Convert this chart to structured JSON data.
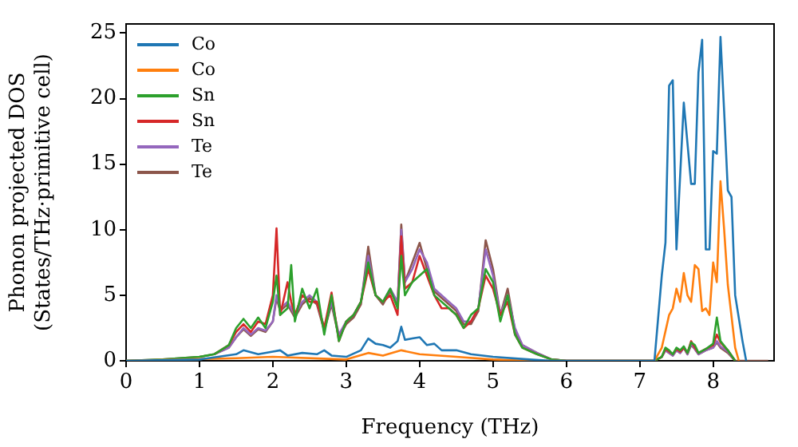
{
  "chart_data": {
    "type": "line",
    "xlabel": "Frequency (THz)",
    "ylabel": "Phonon projected DOS\n(States/THz·primitive cell)",
    "xlim": [
      0,
      8.83
    ],
    "ylim": [
      0,
      25.7
    ],
    "xticks": [
      0,
      1,
      2,
      3,
      4,
      5,
      6,
      7,
      8
    ],
    "yticks": [
      0,
      5,
      10,
      15,
      20,
      25
    ],
    "grid": false,
    "legend": "top left",
    "marker": "none",
    "line_style": "solid",
    "series": [
      {
        "name": "Co",
        "color": "#1f77b4",
        "x": [
          0,
          1.0,
          1.5,
          1.6,
          1.8,
          2.0,
          2.1,
          2.2,
          2.4,
          2.6,
          2.7,
          2.8,
          3.0,
          3.2,
          3.3,
          3.4,
          3.5,
          3.6,
          3.7,
          3.75,
          3.8,
          3.9,
          4.0,
          4.1,
          4.2,
          4.3,
          4.5,
          4.7,
          5.0,
          5.5,
          5.8,
          7.2,
          7.3,
          7.35,
          7.4,
          7.45,
          7.5,
          7.6,
          7.7,
          7.75,
          7.8,
          7.85,
          7.9,
          7.95,
          8.0,
          8.05,
          8.1,
          8.15,
          8.2,
          8.25,
          8.3,
          8.4,
          8.45
        ],
        "values": [
          0,
          0.1,
          0.5,
          0.8,
          0.5,
          0.7,
          0.8,
          0.4,
          0.6,
          0.5,
          0.8,
          0.4,
          0.3,
          0.8,
          1.7,
          1.3,
          1.2,
          1.0,
          1.5,
          2.6,
          1.6,
          1.7,
          1.8,
          1.2,
          1.3,
          0.8,
          0.8,
          0.5,
          0.3,
          0.1,
          0,
          0,
          6.5,
          9,
          21,
          21.4,
          8.5,
          19.7,
          13.5,
          13.5,
          22,
          24.5,
          8.5,
          8.5,
          16,
          15.8,
          24.7,
          19,
          13,
          12.5,
          5,
          1.5,
          0
        ]
      },
      {
        "name": "Co",
        "color": "#ff7f0e",
        "x": [
          0,
          1.5,
          2.0,
          3.0,
          3.3,
          3.5,
          3.75,
          4.0,
          4.5,
          5.0,
          5.5,
          7.2,
          7.3,
          7.4,
          7.45,
          7.5,
          7.55,
          7.6,
          7.65,
          7.7,
          7.75,
          7.8,
          7.85,
          7.9,
          7.95,
          8.0,
          8.05,
          8.1,
          8.15,
          8.2,
          8.3,
          8.35
        ],
        "values": [
          0,
          0.2,
          0.3,
          0.1,
          0.6,
          0.4,
          0.8,
          0.5,
          0.3,
          0.1,
          0,
          0,
          1,
          3.5,
          4,
          5.5,
          4.5,
          6.7,
          5,
          4.5,
          7.3,
          7,
          3.8,
          4,
          3.5,
          7.5,
          6,
          13.7,
          10,
          5.8,
          1,
          0
        ]
      },
      {
        "name": "Sn",
        "color": "#2ca02c",
        "x": [
          0,
          0.5,
          1.0,
          1.2,
          1.4,
          1.5,
          1.6,
          1.7,
          1.8,
          1.9,
          2.0,
          2.05,
          2.1,
          2.2,
          2.25,
          2.3,
          2.4,
          2.5,
          2.6,
          2.7,
          2.8,
          2.9,
          3.0,
          3.1,
          3.2,
          3.3,
          3.4,
          3.5,
          3.6,
          3.7,
          3.75,
          3.8,
          3.9,
          4.0,
          4.1,
          4.2,
          4.3,
          4.4,
          4.5,
          4.6,
          4.7,
          4.8,
          4.9,
          5.0,
          5.1,
          5.2,
          5.3,
          5.4,
          5.6,
          5.8,
          6.0,
          7.2,
          7.3,
          7.35,
          7.4,
          7.45,
          7.5,
          7.55,
          7.6,
          7.65,
          7.7,
          7.75,
          7.8,
          7.9,
          8.0,
          8.05,
          8.1,
          8.2,
          8.3
        ],
        "values": [
          0,
          0.1,
          0.3,
          0.5,
          1.2,
          2.5,
          3.2,
          2.5,
          3.3,
          2.5,
          4.5,
          6.5,
          3.5,
          4,
          7.3,
          3,
          5.5,
          4,
          5.5,
          2,
          5,
          1.5,
          3,
          3.5,
          4.5,
          7.5,
          5,
          4.5,
          5.5,
          4,
          8,
          5,
          6,
          6.5,
          7,
          5,
          4.5,
          4,
          3.5,
          2.5,
          3.5,
          4,
          7,
          6,
          3,
          5,
          2,
          1,
          0.5,
          0.1,
          0,
          0,
          0.3,
          1.0,
          0.8,
          0.5,
          1.0,
          0.8,
          1.1,
          0.6,
          1.4,
          1.2,
          0.6,
          0.9,
          1.3,
          3.3,
          1.5,
          0.8,
          0
        ]
      },
      {
        "name": "Sn",
        "color": "#d62728",
        "x": [
          1.2,
          1.4,
          1.5,
          1.6,
          1.7,
          1.8,
          1.9,
          2.0,
          2.05,
          2.1,
          2.2,
          2.25,
          2.3,
          2.4,
          2.5,
          2.6,
          2.7,
          2.8,
          2.9,
          3.0,
          3.1,
          3.2,
          3.3,
          3.4,
          3.5,
          3.6,
          3.7,
          3.75,
          3.8,
          3.9,
          4.0,
          4.1,
          4.2,
          4.3,
          4.4,
          4.5,
          4.6,
          4.7,
          4.8,
          4.9,
          5.0,
          5.1,
          5.2,
          5.3,
          5.4,
          5.6,
          5.8,
          6.0,
          7.2,
          7.3,
          7.35,
          7.4,
          7.45,
          7.5,
          7.55,
          7.6,
          7.65,
          7.7,
          7.75,
          7.8,
          7.9,
          8.0,
          8.05,
          8.1,
          8.2,
          8.3
        ],
        "values": [
          0.5,
          1.2,
          2.2,
          2.8,
          2.2,
          3.0,
          2.8,
          5.0,
          10.1,
          3.5,
          6.0,
          4.5,
          3.5,
          5.0,
          4.5,
          4.5,
          2.5,
          5.2,
          1.5,
          3.0,
          3.5,
          4.5,
          7.0,
          5.0,
          4.5,
          5.0,
          3.5,
          9.5,
          5.5,
          6.0,
          8.0,
          6.5,
          5.0,
          4.0,
          4.0,
          3.5,
          2.5,
          3.0,
          4.0,
          6.5,
          5.5,
          3.5,
          4.5,
          2.0,
          1.0,
          0.5,
          0.1,
          0,
          0,
          0.3,
          0.9,
          0.7,
          0.5,
          0.9,
          0.7,
          1.0,
          0.6,
          1.5,
          1.0,
          0.6,
          0.9,
          1.2,
          2.0,
          1.4,
          0.8,
          0
        ]
      },
      {
        "name": "Te",
        "color": "#9467bd",
        "x": [
          1.2,
          1.4,
          1.5,
          1.6,
          1.7,
          1.8,
          1.9,
          2.0,
          2.05,
          2.1,
          2.2,
          2.25,
          2.3,
          2.4,
          2.5,
          2.6,
          2.7,
          2.8,
          2.9,
          3.0,
          3.1,
          3.2,
          3.3,
          3.4,
          3.5,
          3.6,
          3.7,
          3.75,
          3.8,
          3.9,
          4.0,
          4.1,
          4.2,
          4.3,
          4.4,
          4.5,
          4.6,
          4.7,
          4.8,
          4.9,
          5.0,
          5.1,
          5.2,
          5.3,
          5.4,
          5.6,
          5.8,
          6.0,
          7.2,
          7.3,
          7.35,
          7.4,
          7.45,
          7.5,
          7.55,
          7.6,
          7.65,
          7.7,
          7.75,
          7.8,
          7.9,
          8.0,
          8.05,
          8.1,
          8.2,
          8.3
        ],
        "values": [
          0.5,
          1.0,
          1.8,
          2.5,
          2.0,
          2.5,
          2.3,
          3.0,
          5.0,
          4.0,
          4.5,
          4.0,
          3.5,
          4.5,
          5.0,
          4.5,
          2.5,
          4.5,
          2.0,
          3.0,
          3.5,
          4.5,
          8.0,
          5.0,
          4.5,
          5.5,
          4.5,
          10.0,
          6.0,
          7.0,
          8.5,
          7.5,
          5.5,
          5.0,
          4.5,
          4.0,
          3.0,
          3.0,
          4.0,
          8.5,
          6.5,
          3.5,
          5.0,
          2.5,
          1.2,
          0.6,
          0.1,
          0,
          0,
          0.3,
          0.8,
          0.6,
          0.4,
          0.8,
          0.6,
          1.0,
          0.5,
          1.3,
          0.9,
          0.5,
          0.8,
          1.0,
          1.5,
          1.1,
          0.7,
          0
        ]
      },
      {
        "name": "Te",
        "color": "#8c564b",
        "x": [
          0,
          0.5,
          1.0,
          1.2,
          1.4,
          1.5,
          1.6,
          1.7,
          1.8,
          1.9,
          2.0,
          2.05,
          2.1,
          2.2,
          2.25,
          2.3,
          2.4,
          2.5,
          2.6,
          2.7,
          2.8,
          2.9,
          3.0,
          3.1,
          3.2,
          3.3,
          3.4,
          3.5,
          3.6,
          3.7,
          3.75,
          3.8,
          3.9,
          4.0,
          4.1,
          4.2,
          4.3,
          4.4,
          4.5,
          4.6,
          4.7,
          4.8,
          4.9,
          5.0,
          5.1,
          5.2,
          5.3,
          5.4,
          5.6,
          5.8,
          6.0,
          7.2,
          7.3,
          7.35,
          7.4,
          7.45,
          7.5,
          7.55,
          7.6,
          7.65,
          7.7,
          7.75,
          7.8,
          7.9,
          8.0,
          8.05,
          8.1,
          8.2,
          8.3,
          8.75
        ],
        "values": [
          0,
          0.1,
          0.3,
          0.5,
          1.0,
          1.8,
          2.4,
          1.9,
          2.4,
          2.2,
          3.0,
          4.8,
          3.8,
          4.3,
          3.8,
          3.3,
          4.3,
          4.8,
          4.3,
          2.3,
          4.3,
          1.8,
          2.8,
          3.3,
          4.3,
          8.7,
          5.0,
          4.3,
          5.3,
          4.3,
          10.4,
          6.0,
          7.5,
          9.0,
          7.0,
          5.3,
          4.8,
          4.3,
          3.8,
          2.8,
          2.8,
          3.8,
          9.2,
          7.0,
          3.5,
          5.5,
          2.3,
          1.2,
          0.6,
          0.1,
          0,
          0,
          0.3,
          0.8,
          0.6,
          0.4,
          0.8,
          0.6,
          1.0,
          0.5,
          1.2,
          0.9,
          0.5,
          0.8,
          1.0,
          1.4,
          1.0,
          0.6,
          0,
          0
        ]
      }
    ]
  }
}
